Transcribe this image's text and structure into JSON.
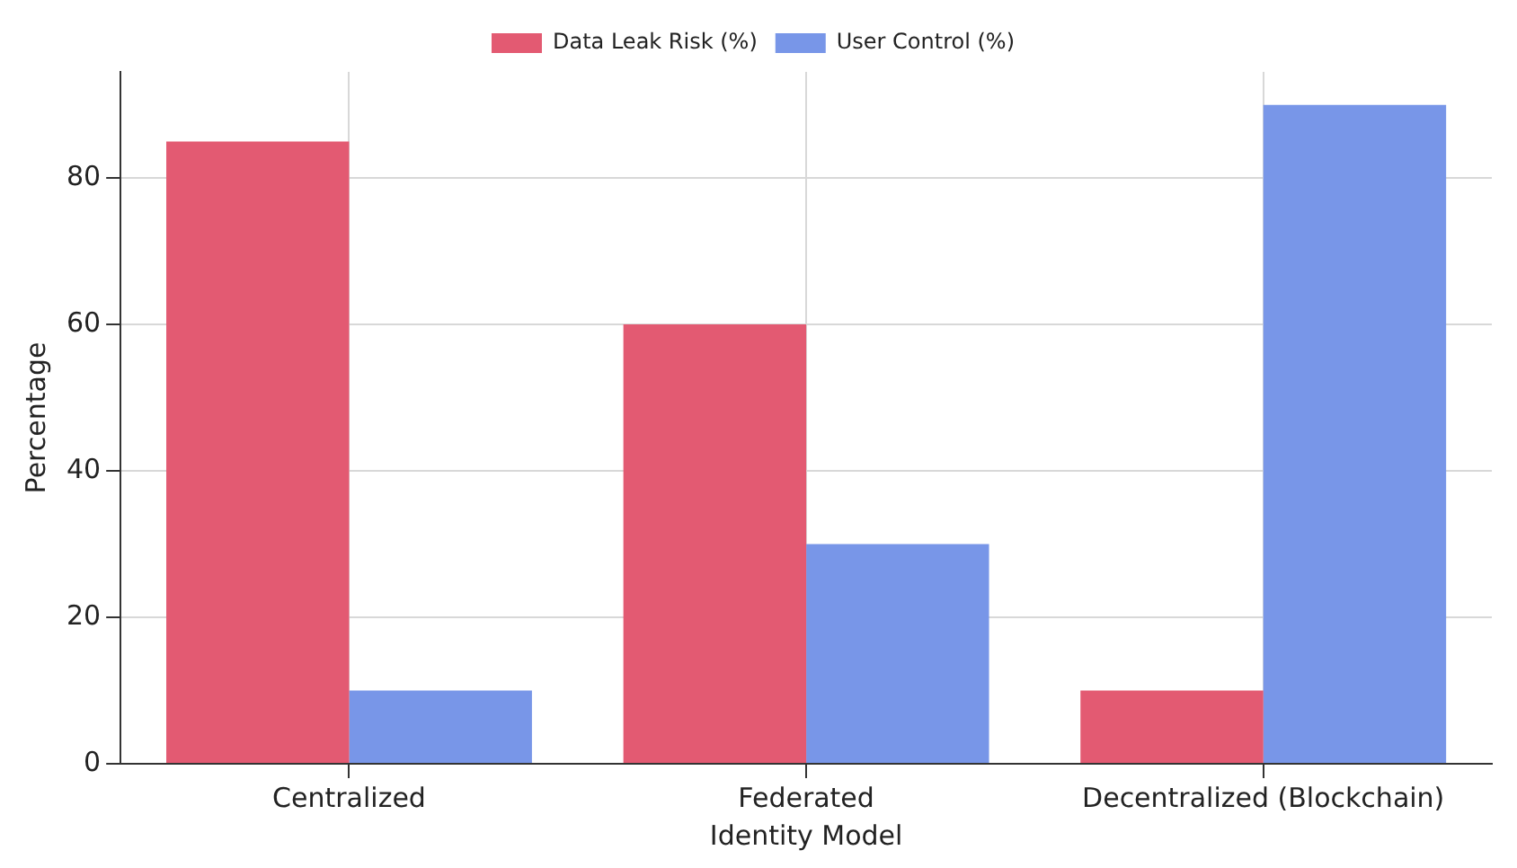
{
  "chart_data": {
    "type": "bar",
    "xlabel": "Identity Model",
    "ylabel": "Percentage",
    "categories": [
      "Centralized",
      "Federated",
      "Decentralized (Blockchain)"
    ],
    "series": [
      {
        "name": "Data Leak Risk (%)",
        "color": "#e35a72",
        "values": [
          85,
          60,
          10
        ]
      },
      {
        "name": "User Control (%)",
        "color": "#7896e8",
        "values": [
          10,
          30,
          90
        ]
      }
    ],
    "ylim": [
      0,
      94.5
    ],
    "yticks": [
      0,
      20,
      40,
      60,
      80
    ],
    "grid": true,
    "legend": "top"
  }
}
